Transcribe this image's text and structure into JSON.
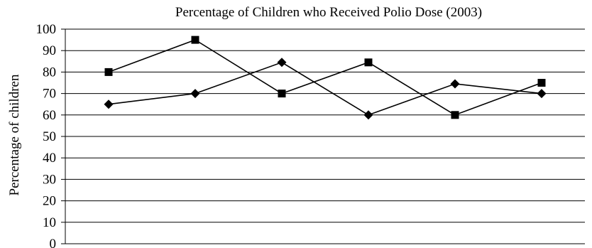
{
  "chart_data": {
    "type": "line",
    "title": "Percentage of Children who Received Polio Dose (2003)",
    "xlabel": "",
    "ylabel": "Percentage of children",
    "ylim": [
      0,
      100
    ],
    "y_ticks": [
      0,
      10,
      20,
      30,
      40,
      50,
      60,
      70,
      80,
      90,
      100
    ],
    "grid": true,
    "legend": "none",
    "categories": [
      "",
      "",
      "",
      "",
      "",
      ""
    ],
    "series": [
      {
        "marker": "square",
        "color": "#000000",
        "values": [
          80,
          95,
          70,
          84.5,
          60,
          75
        ]
      },
      {
        "marker": "diamond",
        "color": "#000000",
        "values": [
          65,
          70,
          84.5,
          60,
          74.5,
          70
        ]
      }
    ]
  }
}
